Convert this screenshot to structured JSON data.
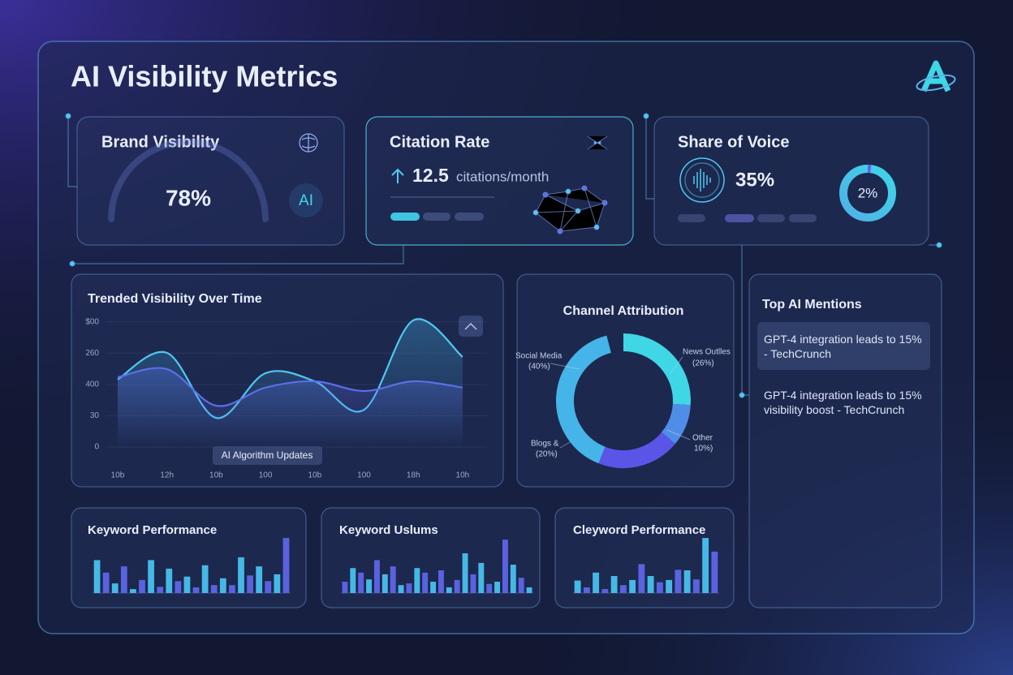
{
  "header": {
    "title": "AI Visibility Metrics"
  },
  "cards": [
    {
      "title": "Brand Visibility",
      "value": 78,
      "value_label": "78%",
      "badge": "AI"
    },
    {
      "title": "Citation Rate",
      "value": 12.5,
      "unit": "citations/month"
    },
    {
      "title": "Share of Voice",
      "value": 35,
      "value_label": "35%",
      "ring_value": 2,
      "ring_label": "2%"
    }
  ],
  "chart_data": [
    {
      "type": "line",
      "title": "Trended Visibility Over Time",
      "annotation": "AI Algorithm Updates",
      "categories": [
        "10b",
        "12h",
        "10b",
        "100",
        "10b",
        "100",
        "18h",
        "10h"
      ],
      "ylim": [
        0,
        420
      ],
      "yticks": [
        0,
        {
          "value": 100,
          "label": "30"
        },
        {
          "value": 200,
          "label": "400"
        },
        {
          "value": 300,
          "label": "260"
        },
        {
          "value": 400,
          "label": "$00"
        }
      ],
      "grid": true,
      "series": [
        {
          "color": "#4fc8f0",
          "values": [
            216,
            301,
            93,
            236,
            210,
            119,
            405,
            288
          ]
        },
        {
          "color": "#5a6fe8",
          "values": [
            223,
            249,
            132,
            190,
            210,
            179,
            210,
            190
          ]
        }
      ]
    },
    {
      "type": "pie",
      "title": "Channel Attribution",
      "categories": [
        "News Outlles",
        "Other",
        "Blogs &",
        "Social Media"
      ],
      "values": [
        26,
        10,
        20,
        40
      ],
      "value_labels": [
        "(26%)",
        "10%)",
        "(20%)",
        "(40%)"
      ],
      "colors": [
        "#3fd6e6",
        "#4f8ee8",
        "#5a55e6",
        "#45b4e8"
      ]
    },
    {
      "type": "bar",
      "title": "Keyword Performance",
      "ylim": [
        0,
        100
      ],
      "colors": [
        "#46b8e6",
        "#5a62e0"
      ],
      "values": [
        58,
        36,
        17,
        47,
        7,
        23,
        58,
        11,
        43,
        21,
        29,
        10,
        49,
        14,
        26,
        14,
        63,
        31,
        47,
        21,
        33,
        97
      ]
    },
    {
      "type": "bar",
      "title": "Keyword Uslums",
      "ylim": [
        0,
        100
      ],
      "colors": [
        "#5a62e0",
        "#46b8e6"
      ],
      "values": [
        20,
        44,
        36,
        24,
        58,
        33,
        47,
        14,
        17,
        44,
        36,
        20,
        40,
        10,
        23,
        70,
        33,
        53,
        16,
        20,
        94,
        50,
        27,
        10
      ]
    },
    {
      "type": "bar",
      "title": "Cleyword Performance",
      "ylim": [
        0,
        100
      ],
      "colors": [
        "#46b8e6",
        "#5a62e0"
      ],
      "values": [
        22,
        10,
        36,
        7,
        30,
        14,
        23,
        51,
        30,
        19,
        23,
        41,
        40,
        24,
        97,
        73
      ]
    }
  ],
  "mentions": {
    "title": "Top AI Mentions",
    "items": [
      "GPT-4 integration leads to 15% - TechCrunch",
      "GPT-4 integration leads to 15% visibility boost - TechCrunch"
    ]
  }
}
